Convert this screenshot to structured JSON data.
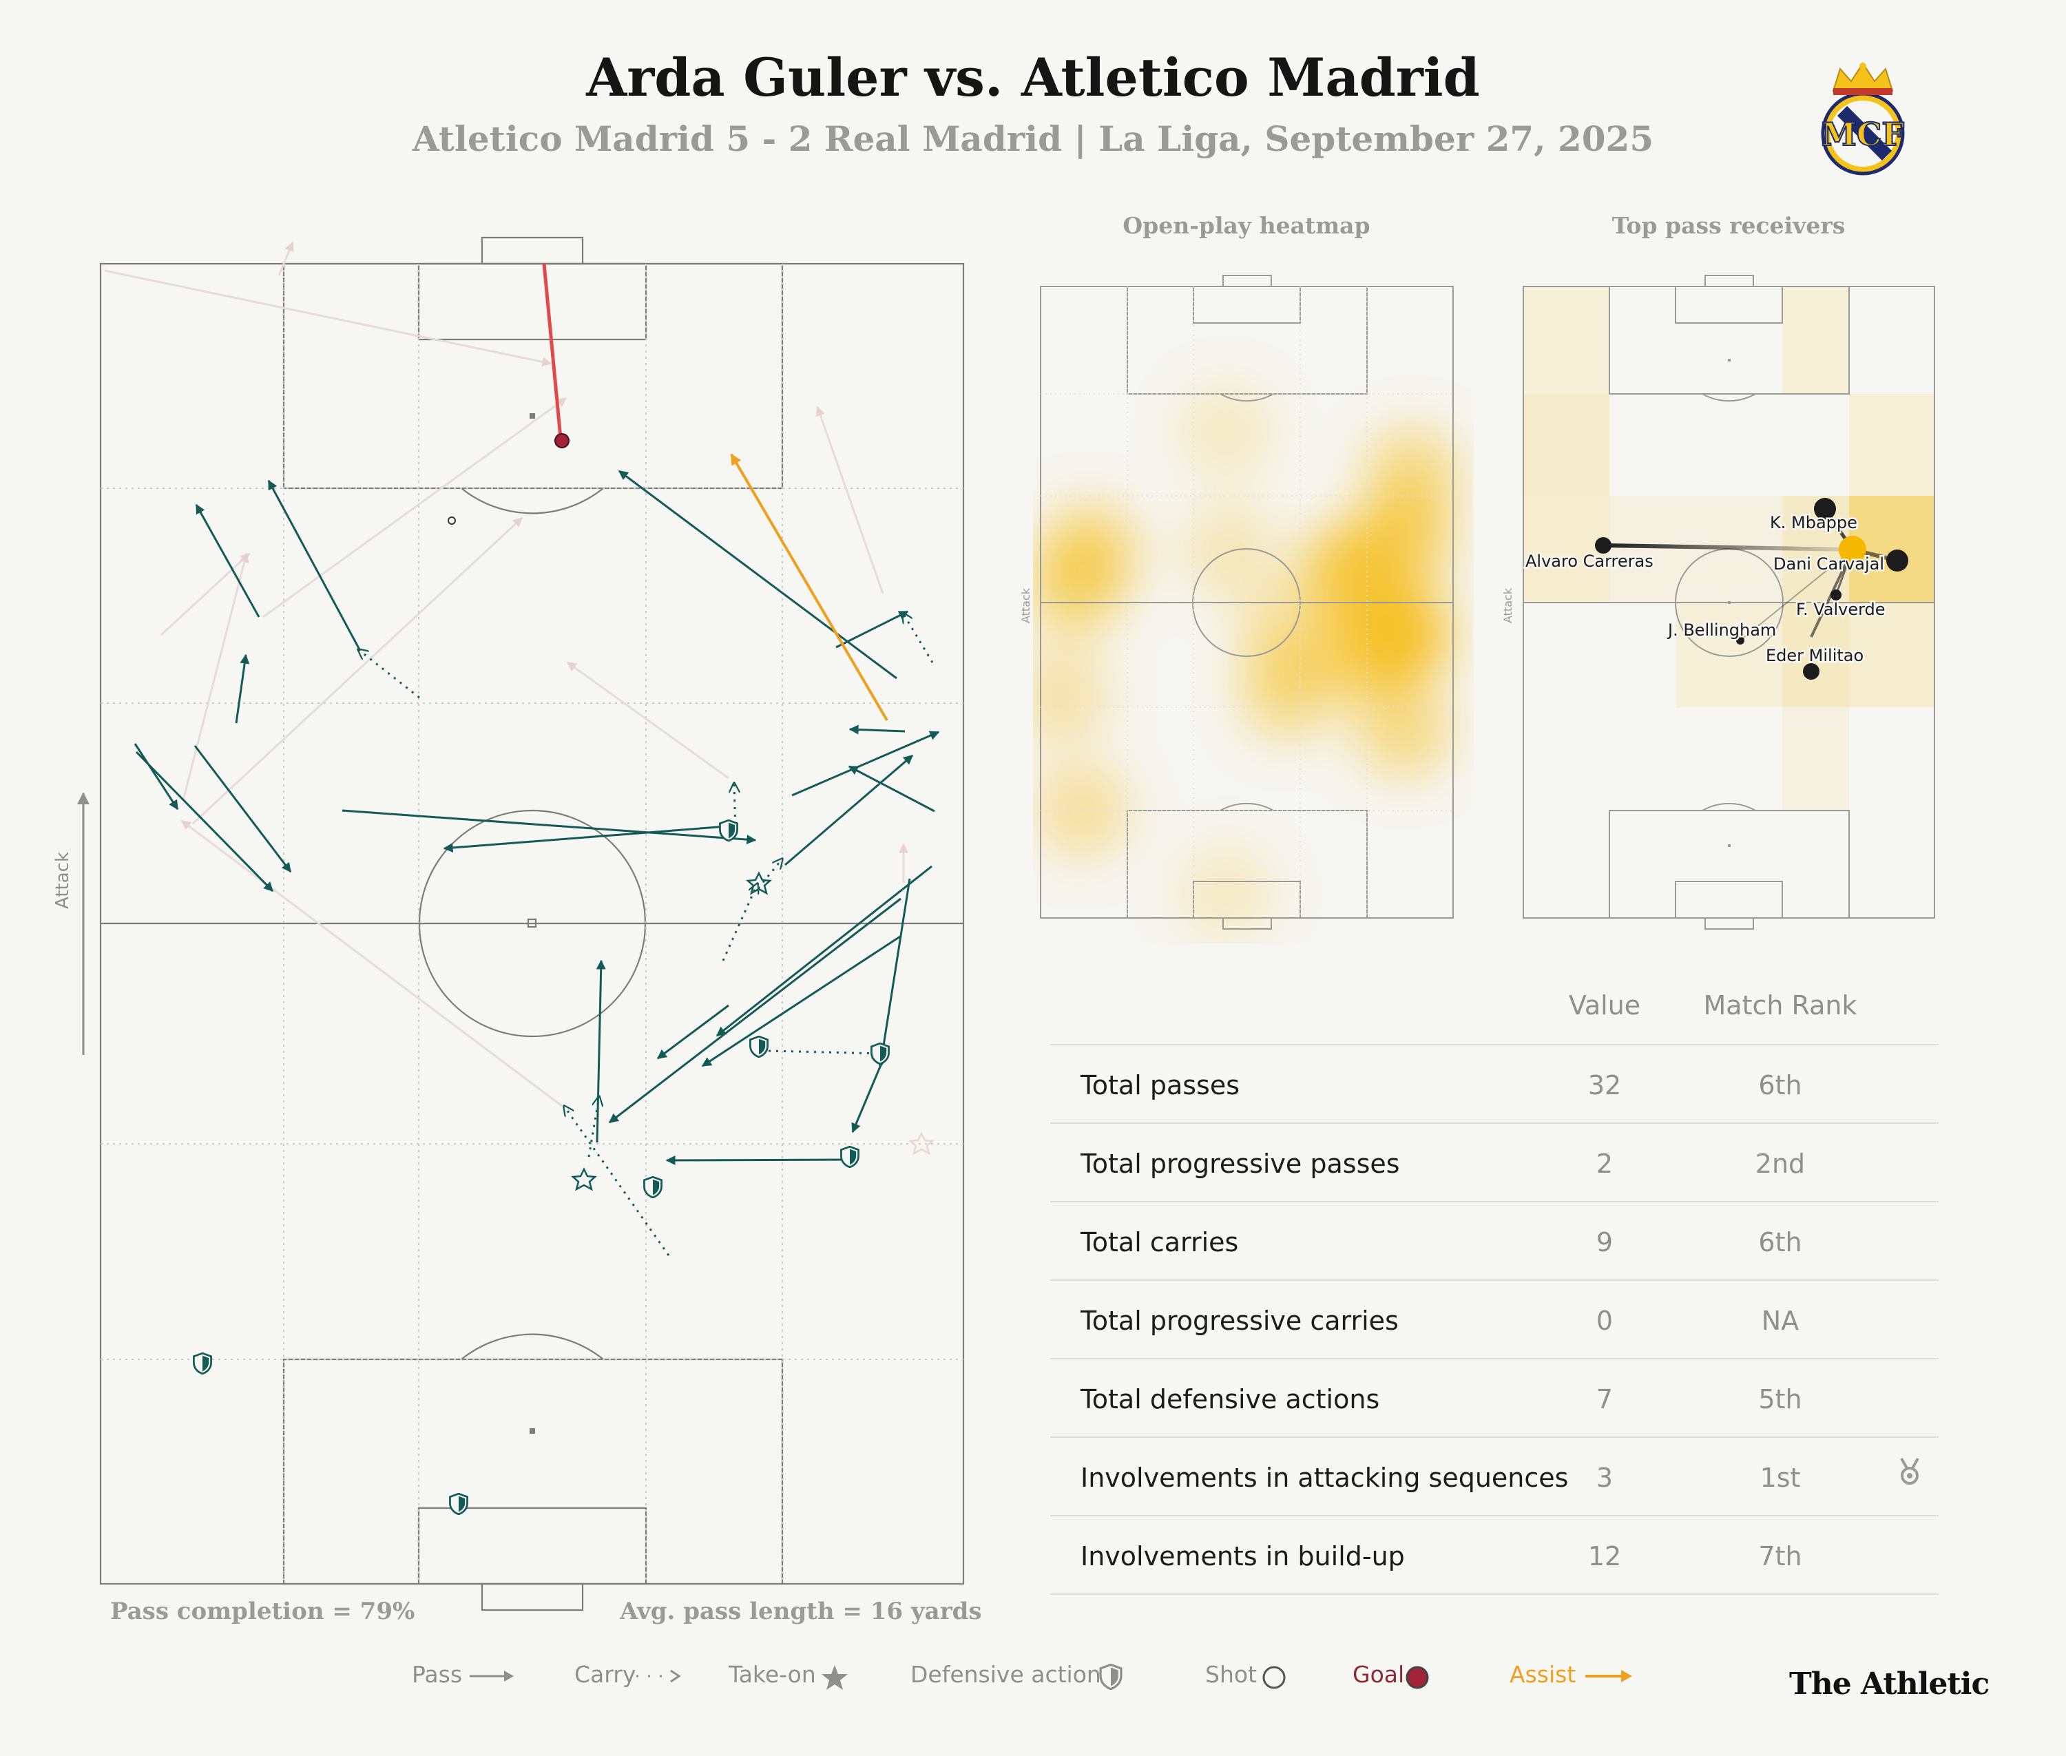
{
  "header": {
    "title": "Arda Guler vs. Atletico Madrid",
    "subtitle": "Atletico Madrid 5 - 2 Real Madrid | La Liga, September 27, 2025"
  },
  "panels": {
    "heatmap_title": "Open-play heatmap",
    "receivers_title": "Top pass receivers",
    "attack_label": "Attack"
  },
  "pitch_stats": {
    "pass_completion": "Pass completion = 79%",
    "avg_pass_length": "Avg. pass length = 16 yards"
  },
  "table": {
    "col_value": "Value",
    "col_rank": "Match Rank",
    "rows": [
      {
        "label": "Total passes",
        "value": "32",
        "rank": "6th"
      },
      {
        "label": "Total progressive passes",
        "value": "2",
        "rank": "2nd"
      },
      {
        "label": "Total carries",
        "value": "9",
        "rank": "6th"
      },
      {
        "label": "Total progressive carries",
        "value": "0",
        "rank": "NA"
      },
      {
        "label": "Total defensive actions",
        "value": "7",
        "rank": "5th"
      },
      {
        "label": "Involvements in attacking sequences",
        "value": "3",
        "rank": "1st",
        "medal": true
      },
      {
        "label": "Involvements in build-up",
        "value": "12",
        "rank": "7th"
      }
    ]
  },
  "legend": {
    "pass": "Pass",
    "carry": "Carry",
    "take_on": "Take-on",
    "defensive": "Defensive action",
    "shot": "Shot",
    "goal": "Goal",
    "assist": "Assist"
  },
  "brand": "The Athletic",
  "colors": {
    "pass": "#145a57",
    "faded": "#e6dcda",
    "goal": "#a02436",
    "assist": "#f0a020",
    "heat": "#f5b700",
    "text_muted": "#9a9a96"
  },
  "chart_data": {
    "type": "scatter",
    "receivers": [
      "K. Mbappe",
      "Dani Carvajal",
      "Alvaro Carreras",
      "F. Valverde",
      "J. Bellingham",
      "Eder Militao"
    ],
    "heatmap": [
      {
        "x": 8,
        "y": 52,
        "intensity": 0.45
      },
      {
        "x": 12,
        "y": 58,
        "intensity": 0.5
      },
      {
        "x": 5,
        "y": 35,
        "intensity": 0.3
      },
      {
        "x": 46,
        "y": 58,
        "intensity": 0.25
      },
      {
        "x": 45,
        "y": 77,
        "intensity": 0.2
      },
      {
        "x": 75,
        "y": 55,
        "intensity": 0.7
      },
      {
        "x": 88,
        "y": 45,
        "intensity": 0.8
      },
      {
        "x": 88,
        "y": 60,
        "intensity": 0.6
      },
      {
        "x": 90,
        "y": 70,
        "intensity": 0.45
      },
      {
        "x": 78,
        "y": 42,
        "intensity": 0.55
      },
      {
        "x": 60,
        "y": 36,
        "intensity": 0.45
      },
      {
        "x": 60,
        "y": 45,
        "intensity": 0.35
      },
      {
        "x": 88,
        "y": 30,
        "intensity": 0.45
      },
      {
        "x": 10,
        "y": 17,
        "intensity": 0.35
      },
      {
        "x": 45,
        "y": 4,
        "intensity": 0.2
      }
    ]
  }
}
